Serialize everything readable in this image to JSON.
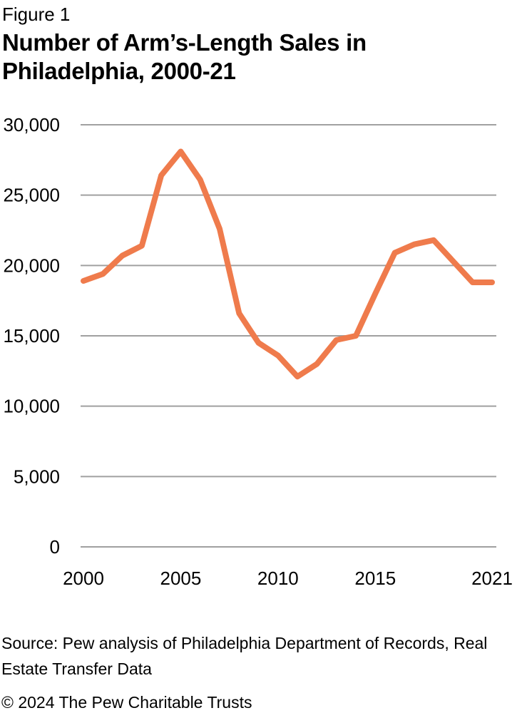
{
  "figure_label": "Figure 1",
  "chart_data": {
    "type": "line",
    "title": "Number of Arm’s-Length Sales in Philadelphia, 2000-21",
    "x": [
      2000,
      2001,
      2002,
      2003,
      2004,
      2005,
      2006,
      2007,
      2008,
      2009,
      2010,
      2011,
      2012,
      2013,
      2014,
      2015,
      2016,
      2017,
      2018,
      2019,
      2020,
      2021
    ],
    "values": [
      18900,
      19400,
      20700,
      21400,
      26400,
      28100,
      26100,
      22600,
      16600,
      14500,
      13600,
      12100,
      13000,
      14700,
      15000,
      18000,
      20900,
      21500,
      21800,
      20300,
      18800,
      18800
    ],
    "xlabel": "",
    "ylabel": "",
    "ylim": [
      0,
      30000
    ],
    "ytick_values": [
      0,
      5000,
      10000,
      15000,
      20000,
      25000,
      30000
    ],
    "ytick_labels": [
      "0",
      "5,000",
      "10,000",
      "15,000",
      "20,000",
      "25,000",
      "30,000"
    ],
    "xtick_years": [
      2000,
      2005,
      2010,
      2015,
      2021
    ],
    "xtick_labels": [
      "2000",
      "2005",
      "2010",
      "2015",
      "2021"
    ],
    "grid": "horizontal-only",
    "legend": "none",
    "line_color": "#EF7B4C",
    "gridline_color": "#A0A0A0",
    "text_color": "#000000"
  },
  "footer": {
    "source_line1": "Source: Pew analysis of Philadelphia Department of Records, Real",
    "source_line2": "Estate Transfer Data",
    "copyright": "© 2024 The Pew Charitable Trusts"
  }
}
